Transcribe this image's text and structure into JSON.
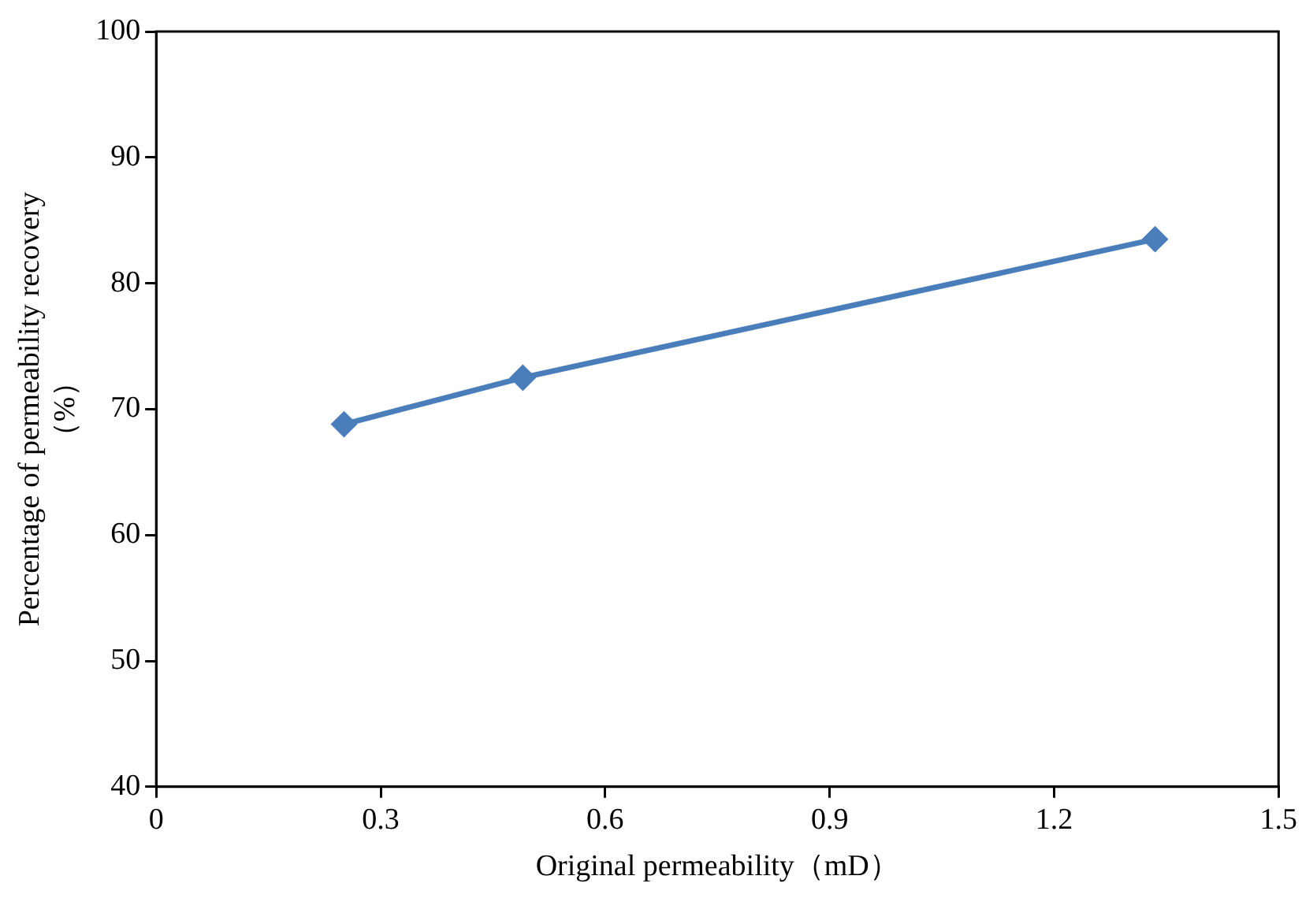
{
  "chart_data": {
    "type": "line",
    "xlabel": "Original permeability（mD）",
    "ylabel": [
      "Percentage of permeability recovery",
      "（%）"
    ],
    "x": [
      0.251,
      0.49,
      1.335
    ],
    "series": [
      {
        "color": "#4a7ebb",
        "values": [
          68.8,
          72.5,
          83.5
        ]
      }
    ],
    "xlim": [
      0,
      1.5
    ],
    "xticks": [
      0,
      0.3,
      0.6,
      0.9,
      1.2,
      1.5
    ],
    "ylim": [
      40,
      100
    ],
    "yticks": [
      40,
      50,
      60,
      70,
      80,
      90,
      100
    ],
    "grid": false,
    "legend": false,
    "marker": "diamond",
    "line_style": "solid"
  }
}
